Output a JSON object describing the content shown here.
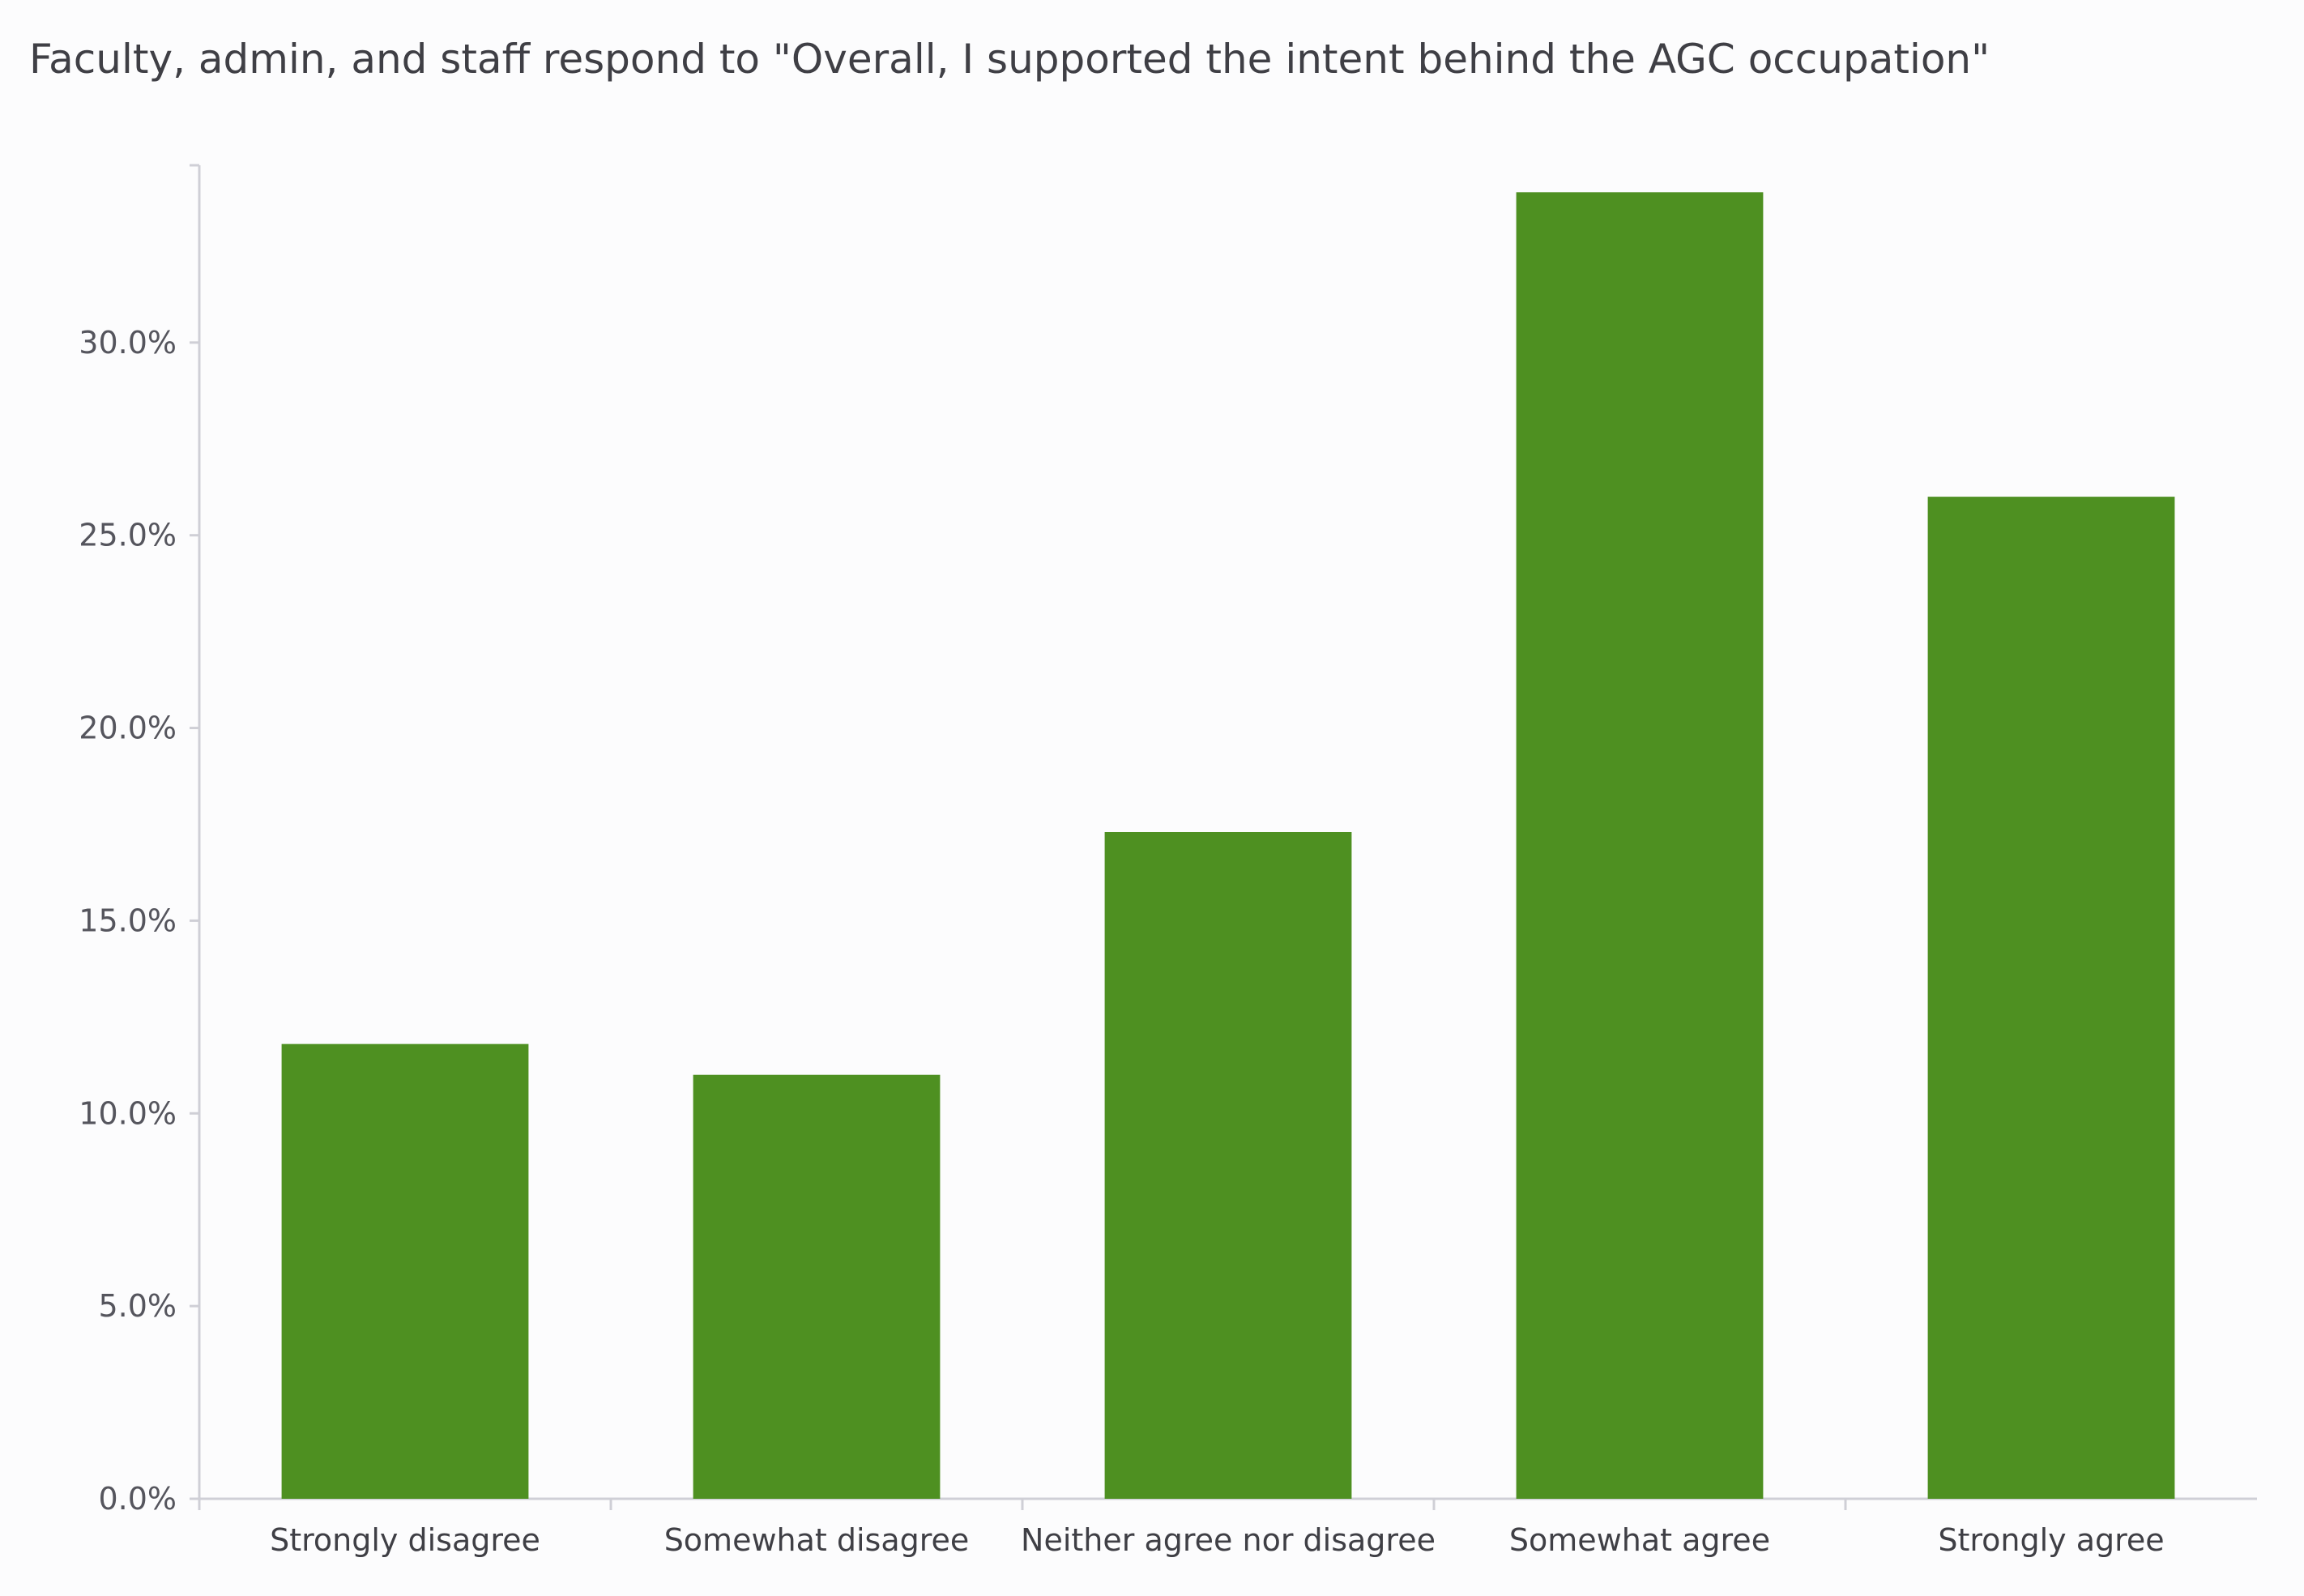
{
  "chart_data": {
    "type": "bar",
    "title": "Faculty, admin, and staff respond to \"Overall, I supported the intent behind the AGC occupation\"",
    "categories": [
      "Strongly disagree",
      "Somewhat disagree",
      "Neither agree nor disagree",
      "Somewhat agree",
      "Strongly agree"
    ],
    "values": [
      11.8,
      11.0,
      17.3,
      33.9,
      26.0
    ],
    "xlabel": "",
    "ylabel": "",
    "ylim": [
      0,
      34.6
    ],
    "yticks": [
      0,
      5,
      10,
      15,
      20,
      25,
      30
    ],
    "ytick_labels": [
      "0.0%",
      "5.0%",
      "10.0%",
      "15.0%",
      "20.0%",
      "25.0%",
      "30.0%"
    ],
    "grid": false,
    "bar_color": "#4e9021",
    "axis_color": "#cfcfd6"
  }
}
